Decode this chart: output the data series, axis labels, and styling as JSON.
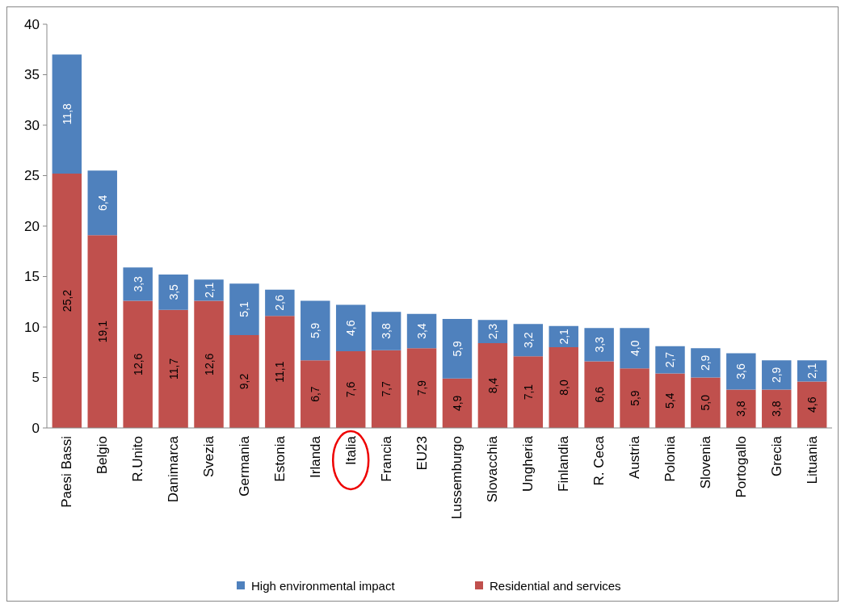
{
  "chart_data": {
    "type": "bar",
    "stacked": true,
    "legend": "bottom",
    "categories": [
      "Paesi Bassi",
      "Belgio",
      "R.Unito",
      "Danimarca",
      "Svezia",
      "Germania",
      "Estonia",
      "Irlanda",
      "Italia",
      "Francia",
      "EU23",
      "Lussemburgo",
      "Slovacchia",
      "Ungheria",
      "Finlandia",
      "R. Ceca",
      "Austria",
      "Polonia",
      "Slovenia",
      "Portogallo",
      "Grecia",
      "Lituania"
    ],
    "series": [
      {
        "name": "Residential and services",
        "color": "#c0504d",
        "values": [
          25.2,
          19.1,
          12.6,
          11.7,
          12.6,
          9.2,
          11.1,
          6.7,
          7.6,
          7.7,
          7.9,
          4.9,
          8.4,
          7.1,
          8.0,
          6.6,
          5.9,
          5.4,
          5.0,
          3.8,
          3.8,
          4.6
        ],
        "value_labels": [
          "25,2",
          "19,1",
          "12,6",
          "11,7",
          "12,6",
          "9,2",
          "11,1",
          "6,7",
          "7,6",
          "7,7",
          "7,9",
          "4,9",
          "8,4",
          "7,1",
          "8,0",
          "6,6",
          "5,9",
          "5,4",
          "5,0",
          "3,8",
          "3,8",
          "4,6"
        ]
      },
      {
        "name": "High environmental  impact",
        "color": "#4f81bd",
        "values": [
          11.8,
          6.4,
          3.3,
          3.5,
          2.1,
          5.1,
          2.6,
          5.9,
          4.6,
          3.8,
          3.4,
          5.9,
          2.3,
          3.2,
          2.1,
          3.3,
          4.0,
          2.7,
          2.9,
          3.6,
          2.9,
          2.1
        ],
        "value_labels": [
          "11,8",
          "6,4",
          "3,3",
          "3,5",
          "2,1",
          "5,1",
          "2,6",
          "5,9",
          "4,6",
          "3,8",
          "3,4",
          "5,9",
          "2,3",
          "3,2",
          "2,1",
          "3,3",
          "4,0",
          "2,7",
          "2,9",
          "3,6",
          "2,9",
          "2,1"
        ]
      }
    ],
    "ylim": [
      0,
      40
    ],
    "yticks": [
      0,
      5,
      10,
      15,
      20,
      25,
      30,
      35,
      40
    ],
    "grid": false
  }
}
